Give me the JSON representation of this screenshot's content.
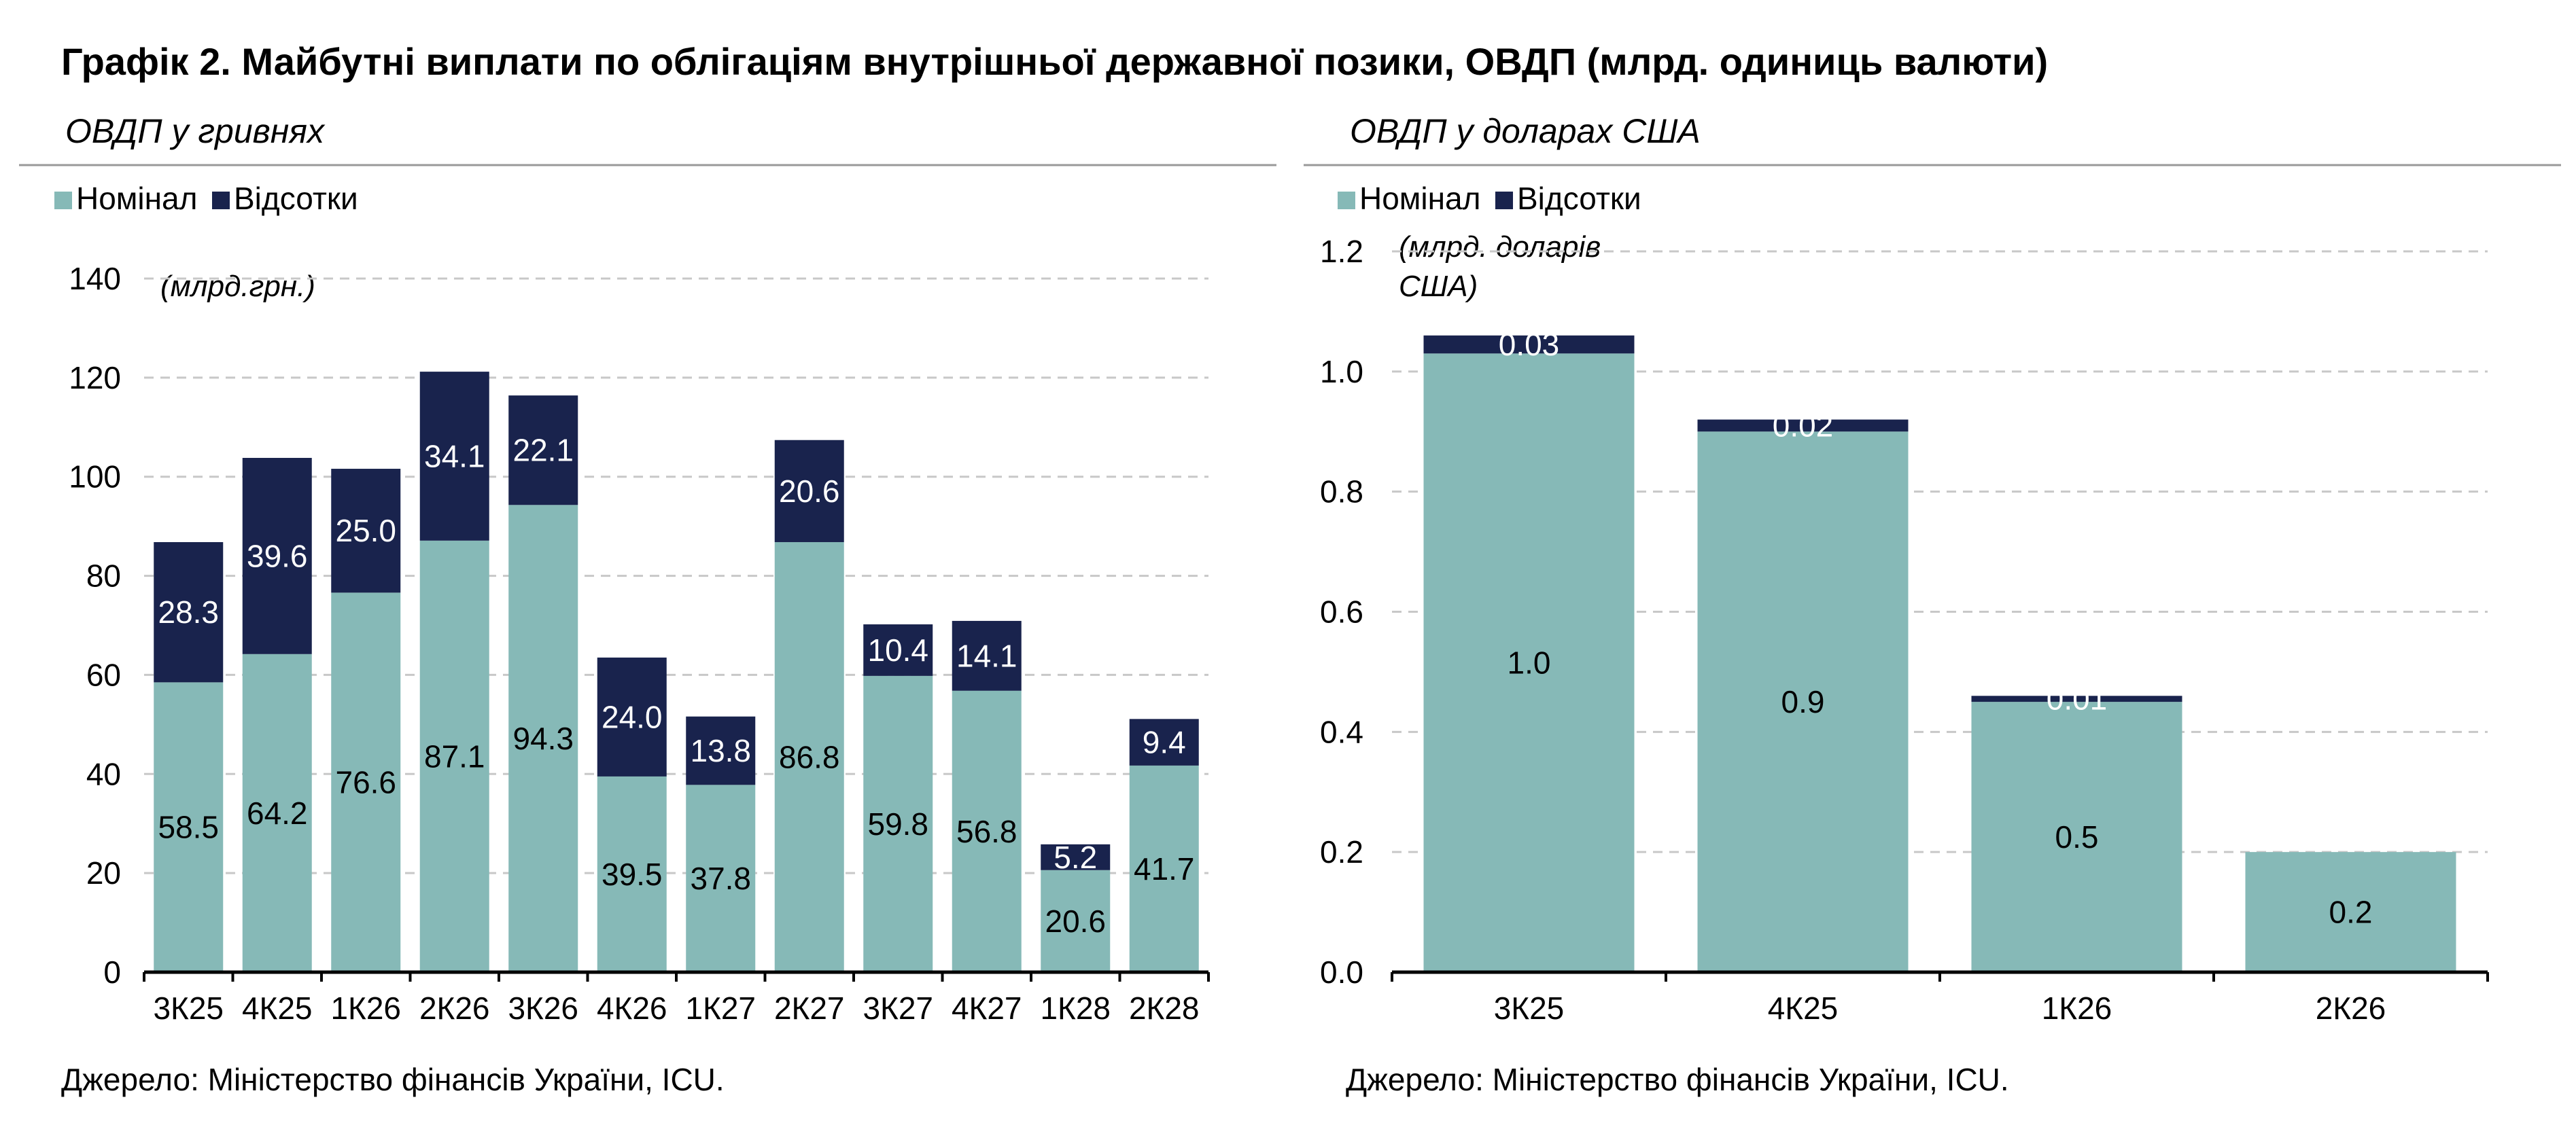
{
  "page": {
    "title": "Графік 2. Майбутні виплати по облігаціям внутрішньої державної позики, ОВДП (млрд. одиниць валюти)"
  },
  "colors": {
    "nominal": "#86b9b7",
    "interest": "#19234d",
    "grid": "#c8c8c8",
    "text": "#000000",
    "rule": "#999999"
  },
  "chart_data": [
    {
      "type": "bar",
      "stacked": true,
      "subtitle": "ОВДП у гривнях",
      "unit_note": "(млрд.грн.)",
      "source": "Джерело: Міністерство фінансів України, ICU.",
      "categories": [
        "3К25",
        "4К25",
        "1К26",
        "2К26",
        "3К26",
        "4К26",
        "1К27",
        "2К27",
        "3К27",
        "4К27",
        "1К28",
        "2К28"
      ],
      "series": [
        {
          "name": "Номінал",
          "values": [
            58.5,
            64.2,
            76.6,
            87.1,
            94.3,
            39.5,
            37.8,
            86.8,
            59.8,
            56.8,
            20.6,
            41.7
          ]
        },
        {
          "name": "Відсотки",
          "values": [
            28.3,
            39.6,
            25.0,
            34.1,
            22.1,
            24.0,
            13.8,
            20.6,
            10.4,
            14.1,
            5.2,
            9.4
          ]
        }
      ],
      "value_labels": [
        [
          "58.5",
          "64.2",
          "76.6",
          "87.1",
          "94.3",
          "39.5",
          "37.8",
          "86.8",
          "59.8",
          "56.8",
          "20.6",
          "41.7"
        ],
        [
          "28.3",
          "39.6",
          "25.0",
          "34.1",
          "22.1",
          "24.0",
          "13.8",
          "20.6",
          "10.4",
          "14.1",
          "5.2",
          "9.4"
        ]
      ],
      "ylim": [
        0,
        140
      ],
      "yticks": [
        0,
        20,
        40,
        60,
        80,
        100,
        120,
        140
      ],
      "ytick_labels": [
        "0",
        "20",
        "40",
        "60",
        "80",
        "100",
        "120",
        "140"
      ],
      "grid": true,
      "legend": "top-left"
    },
    {
      "type": "bar",
      "stacked": true,
      "subtitle": "ОВДП у доларах США",
      "unit_note": [
        "(млрд. доларів",
        "США)"
      ],
      "source": "Джерело: Міністерство фінансів України, ICU.",
      "categories": [
        "3К25",
        "4К25",
        "1К26",
        "2К26"
      ],
      "series": [
        {
          "name": "Номінал",
          "values": [
            1.03,
            0.9,
            0.45,
            0.2
          ]
        },
        {
          "name": "Відсотки",
          "values": [
            0.03,
            0.02,
            0.01,
            0.0
          ]
        }
      ],
      "value_labels": [
        [
          "1.0",
          "0.9",
          "0.5",
          "0.2"
        ],
        [
          "0.03",
          "0.02",
          "0.01",
          ""
        ]
      ],
      "ylim": [
        0,
        1.2
      ],
      "yticks": [
        0,
        0.2,
        0.4,
        0.6,
        0.8,
        1.0,
        1.2
      ],
      "ytick_labels": [
        "0.0",
        "0.2",
        "0.4",
        "0.6",
        "0.8",
        "1.0",
        "1.2"
      ],
      "grid": true,
      "legend": "top-left"
    }
  ]
}
